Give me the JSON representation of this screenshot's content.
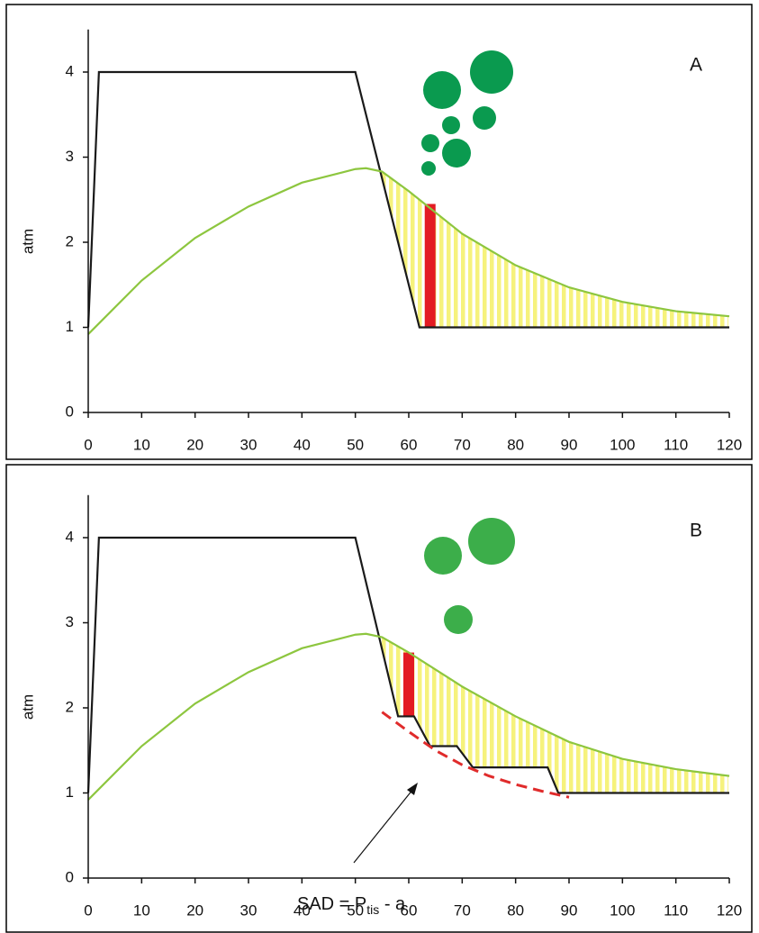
{
  "chart_data": [
    {
      "type": "line",
      "title": "A",
      "ylabel": "atm",
      "xlim": [
        0,
        120
      ],
      "ylim": [
        0,
        4.5
      ],
      "xticks": [
        0,
        10,
        20,
        30,
        40,
        50,
        60,
        70,
        80,
        90,
        100,
        110,
        120
      ],
      "yticks": [
        0,
        1,
        2,
        3,
        4
      ],
      "series": [
        {
          "color": "#1a1a1a",
          "x": [
            0,
            2,
            50,
            62,
            120
          ],
          "values": [
            1,
            4,
            4,
            1,
            1
          ]
        },
        {
          "color": "#8dc63f",
          "x": [
            0,
            10,
            20,
            30,
            40,
            50,
            52,
            55,
            60,
            70,
            80,
            90,
            100,
            110,
            120
          ],
          "values": [
            0.92,
            1.55,
            2.05,
            2.42,
            2.7,
            2.86,
            2.87,
            2.83,
            2.6,
            2.1,
            1.73,
            1.47,
            1.3,
            1.19,
            1.13
          ]
        }
      ],
      "bars": [
        {
          "x": 64,
          "y0": 1,
          "y1": 2.45,
          "color": "#e31b23"
        }
      ],
      "fill_color": "#f6f27c"
    },
    {
      "type": "line",
      "title": "B",
      "ylabel": "atm",
      "xlim": [
        0,
        120
      ],
      "ylim": [
        0,
        4.5
      ],
      "xticks": [
        0,
        10,
        20,
        30,
        40,
        50,
        60,
        70,
        80,
        90,
        100,
        110,
        120
      ],
      "yticks": [
        0,
        1,
        2,
        3,
        4
      ],
      "series": [
        {
          "color": "#1a1a1a",
          "x": [
            0,
            2,
            50,
            58,
            61,
            64,
            69,
            72,
            86,
            88,
            120
          ],
          "values": [
            1,
            4,
            4,
            1.9,
            1.9,
            1.55,
            1.55,
            1.3,
            1.3,
            1,
            1
          ]
        },
        {
          "color": "#8dc63f",
          "x": [
            0,
            10,
            20,
            30,
            40,
            50,
            52,
            55,
            60,
            70,
            80,
            90,
            100,
            110,
            120
          ],
          "values": [
            0.92,
            1.55,
            2.05,
            2.42,
            2.7,
            2.86,
            2.87,
            2.83,
            2.65,
            2.25,
            1.9,
            1.6,
            1.4,
            1.28,
            1.2
          ]
        },
        {
          "color": "#e02b2b",
          "dash": true,
          "x": [
            55,
            60,
            65,
            70,
            75,
            80,
            85,
            90
          ],
          "values": [
            1.95,
            1.72,
            1.5,
            1.33,
            1.2,
            1.1,
            1.02,
            0.95
          ]
        }
      ],
      "bars": [
        {
          "x": 60,
          "y0": 1.9,
          "y1": 2.65,
          "color": "#e31b23"
        }
      ],
      "fill_color": "#f6f27c",
      "annotation": [
        "SAD = P",
        "tis",
        " - a"
      ]
    }
  ]
}
